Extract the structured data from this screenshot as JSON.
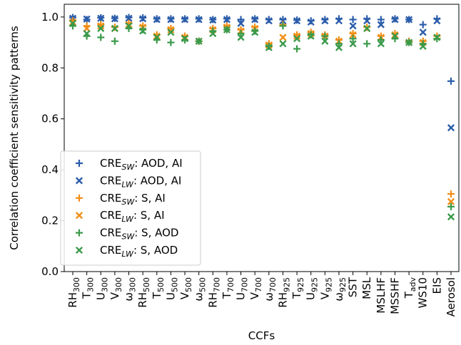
{
  "chart_data": {
    "type": "scatter",
    "xlabel": "CCFs",
    "ylabel": "Correlation coefficient sensitivity patterns",
    "ylim": [
      0.0,
      1.05
    ],
    "yticks": [
      "0.0",
      "0.2",
      "0.4",
      "0.6",
      "0.8",
      "1.0"
    ],
    "grid": false,
    "legend_position": "lower-left",
    "categories": [
      {
        "base": "RH",
        "sub": "300"
      },
      {
        "base": "T",
        "sub": "300"
      },
      {
        "base": "U",
        "sub": "300"
      },
      {
        "base": "V",
        "sub": "300"
      },
      {
        "base": "ω",
        "sub": "300"
      },
      {
        "base": "RH",
        "sub": "500"
      },
      {
        "base": "T",
        "sub": "500"
      },
      {
        "base": "U",
        "sub": "500"
      },
      {
        "base": "V",
        "sub": "500"
      },
      {
        "base": "ω",
        "sub": "500"
      },
      {
        "base": "RH",
        "sub": "700"
      },
      {
        "base": "T",
        "sub": "700"
      },
      {
        "base": "U",
        "sub": "700"
      },
      {
        "base": "V",
        "sub": "700"
      },
      {
        "base": "ω",
        "sub": "700"
      },
      {
        "base": "RH",
        "sub": "925"
      },
      {
        "base": "T",
        "sub": "925"
      },
      {
        "base": "U",
        "sub": "925"
      },
      {
        "base": "V",
        "sub": "925"
      },
      {
        "base": "ω",
        "sub": "925"
      },
      {
        "base": "SST",
        "sub": ""
      },
      {
        "base": "MSL",
        "sub": ""
      },
      {
        "base": "MSLHF",
        "sub": ""
      },
      {
        "base": "MSSHF",
        "sub": ""
      },
      {
        "base": "T",
        "sub": "adv"
      },
      {
        "base": "WS10",
        "sub": ""
      },
      {
        "base": "EIS",
        "sub": ""
      },
      {
        "base": "Aerosol",
        "sub": ""
      }
    ],
    "series": [
      {
        "label": "CRE",
        "sub": "SW",
        "rest": ": AOD, AI",
        "marker": "plus",
        "color": "#2a5caa",
        "values": [
          0.998,
          0.99,
          0.997,
          0.995,
          0.998,
          0.997,
          0.993,
          0.993,
          0.993,
          0.993,
          0.99,
          0.993,
          0.99,
          0.993,
          0.99,
          0.99,
          0.988,
          0.985,
          0.99,
          0.993,
          0.99,
          0.993,
          0.99,
          0.993,
          0.99,
          0.97,
          0.993,
          0.748
        ]
      },
      {
        "label": "CRE",
        "sub": "LW",
        "rest": ": AOD, AI",
        "marker": "x",
        "color": "#2a5caa",
        "values": [
          0.995,
          0.992,
          0.995,
          0.993,
          0.995,
          0.993,
          0.99,
          0.99,
          0.99,
          0.99,
          0.988,
          0.99,
          0.975,
          0.99,
          0.985,
          0.985,
          0.985,
          0.98,
          0.985,
          0.985,
          0.965,
          0.985,
          0.97,
          0.99,
          0.99,
          0.94,
          0.985,
          0.565
        ]
      },
      {
        "label": "CRE",
        "sub": "SW",
        "rest": ": S, AI",
        "marker": "plus",
        "color": "#f28e16",
        "values": [
          0.985,
          0.965,
          0.97,
          0.96,
          0.975,
          0.965,
          0.93,
          0.955,
          0.925,
          0.905,
          0.955,
          0.965,
          0.95,
          0.96,
          0.895,
          0.97,
          0.93,
          0.94,
          0.93,
          0.91,
          0.935,
          0.96,
          0.925,
          0.935,
          0.905,
          0.905,
          0.925,
          0.305
        ]
      },
      {
        "label": "CRE",
        "sub": "LW",
        "rest": ": S, AI",
        "marker": "x",
        "color": "#f28e16",
        "values": [
          0.98,
          0.955,
          0.965,
          0.955,
          0.97,
          0.96,
          0.925,
          0.95,
          0.92,
          0.905,
          0.95,
          0.96,
          0.945,
          0.955,
          0.89,
          0.92,
          0.925,
          0.935,
          0.925,
          0.905,
          0.93,
          0.955,
          0.92,
          0.93,
          0.9,
          0.9,
          0.92,
          0.275
        ]
      },
      {
        "label": "CRE",
        "sub": "SW",
        "rest": ": S, AOD",
        "marker": "plus",
        "color": "#3a9a4a",
        "values": [
          0.965,
          0.925,
          0.92,
          0.905,
          0.955,
          0.95,
          0.91,
          0.9,
          0.91,
          0.905,
          0.945,
          0.95,
          0.935,
          0.945,
          0.885,
          0.965,
          0.875,
          0.93,
          0.925,
          0.895,
          0.915,
          0.895,
          0.91,
          0.915,
          0.9,
          0.895,
          0.915,
          0.255
        ]
      },
      {
        "label": "CRE",
        "sub": "LW",
        "rest": ": S, AOD",
        "marker": "x",
        "color": "#3a9a4a",
        "values": [
          0.975,
          0.935,
          0.955,
          0.955,
          0.965,
          0.945,
          0.92,
          0.94,
          0.915,
          0.905,
          0.935,
          0.95,
          0.92,
          0.94,
          0.88,
          0.895,
          0.915,
          0.925,
          0.905,
          0.88,
          0.895,
          0.955,
          0.895,
          0.925,
          0.9,
          0.885,
          0.92,
          0.215
        ]
      }
    ]
  }
}
